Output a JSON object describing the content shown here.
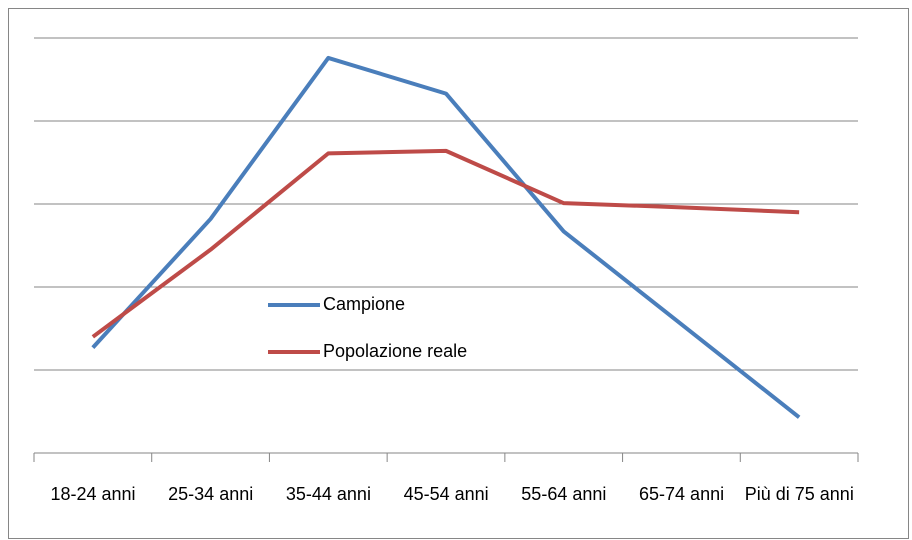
{
  "chart_data": {
    "type": "line",
    "categories": [
      "18-24 anni",
      "25-34 anni",
      "35-44 anni",
      "45-54 anni",
      "55-64 anni",
      "65-74 anni",
      "Più di 75 anni"
    ],
    "series": [
      {
        "name": "Campione",
        "color": "#4a7ebb",
        "values": [
          1.27,
          2.82,
          4.76,
          4.33,
          2.67,
          1.55,
          0.43
        ]
      },
      {
        "name": "Popolazione reale",
        "color": "#be4b48",
        "values": [
          1.4,
          2.45,
          3.61,
          3.64,
          3.01,
          2.96,
          2.9
        ]
      }
    ],
    "ylim": [
      0,
      5
    ],
    "yticks": [
      0,
      1,
      2,
      3,
      4,
      5
    ],
    "grid": true
  }
}
